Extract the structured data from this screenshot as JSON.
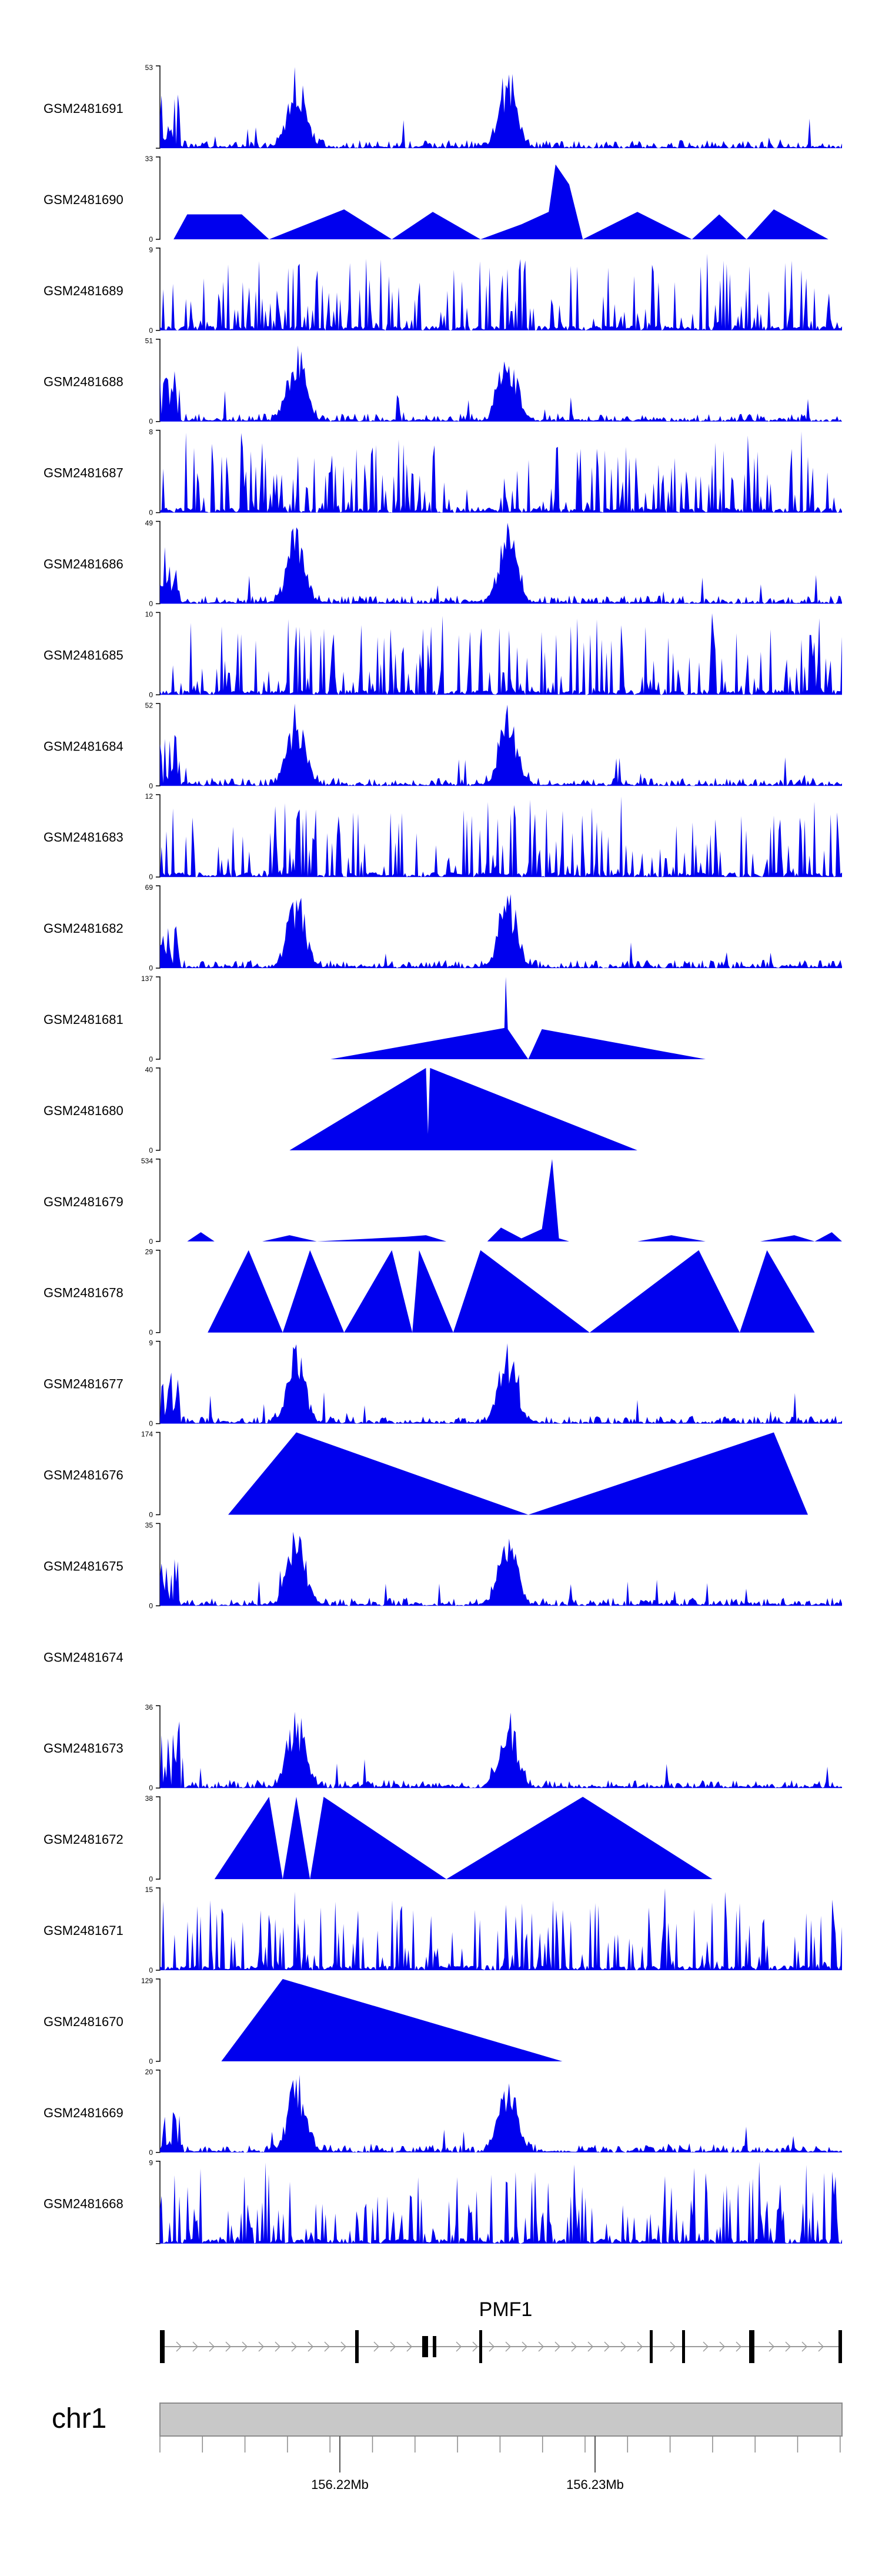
{
  "chart_data": {
    "type": "area",
    "title": "",
    "colors": {
      "signal": "#0000ee",
      "axis": "#000000",
      "gene": "#000000",
      "intron": "#9a9a9a",
      "chrom": "#c8c8c8"
    },
    "gene": {
      "name": "PMF1"
    },
    "chromosome": "chr1",
    "genome_axis": {
      "ticks": [
        "156.22Mb",
        "156.23Mb"
      ]
    },
    "tracks": [
      {
        "name": "GSM2481691",
        "ymin": 0,
        "ymax": 53,
        "ymin_label": "",
        "ymax_label": "53",
        "style": "peaks"
      },
      {
        "name": "GSM2481690",
        "ymin": 0,
        "ymax": 33,
        "ymin_label": "0",
        "ymax_label": "33",
        "style": "sparse",
        "points": [
          [
            0.02,
            0
          ],
          [
            0.04,
            10
          ],
          [
            0.12,
            10
          ],
          [
            0.16,
            0
          ],
          [
            0.27,
            12
          ],
          [
            0.34,
            0
          ],
          [
            0.4,
            11
          ],
          [
            0.47,
            0
          ],
          [
            0.53,
            6
          ],
          [
            0.57,
            11
          ],
          [
            0.58,
            30
          ],
          [
            0.6,
            22
          ],
          [
            0.62,
            0
          ],
          [
            0.7,
            11
          ],
          [
            0.78,
            0
          ],
          [
            0.82,
            10
          ],
          [
            0.86,
            0
          ],
          [
            0.9,
            12
          ],
          [
            0.98,
            0
          ]
        ]
      },
      {
        "name": "GSM2481689",
        "ymin": 0,
        "ymax": 9,
        "ymin_label": "0",
        "ymax_label": "9",
        "style": "dense"
      },
      {
        "name": "GSM2481688",
        "ymin": 0,
        "ymax": 51,
        "ymin_label": "0",
        "ymax_label": "51",
        "style": "peaks"
      },
      {
        "name": "GSM2481687",
        "ymin": 0,
        "ymax": 8,
        "ymin_label": "0",
        "ymax_label": "8",
        "style": "dense"
      },
      {
        "name": "GSM2481686",
        "ymin": 0,
        "ymax": 49,
        "ymin_label": "0",
        "ymax_label": "49",
        "style": "peaks"
      },
      {
        "name": "GSM2481685",
        "ymin": 0,
        "ymax": 10,
        "ymin_label": "0",
        "ymax_label": "10",
        "style": "dense"
      },
      {
        "name": "GSM2481684",
        "ymin": 0,
        "ymax": 52,
        "ymin_label": "0",
        "ymax_label": "52",
        "style": "peaks"
      },
      {
        "name": "GSM2481683",
        "ymin": 0,
        "ymax": 12,
        "ymin_label": "0",
        "ymax_label": "12",
        "style": "dense"
      },
      {
        "name": "GSM2481682",
        "ymin": 0,
        "ymax": 69,
        "ymin_label": "0",
        "ymax_label": "69",
        "style": "peaks"
      },
      {
        "name": "GSM2481681",
        "ymin": 0,
        "ymax": 137,
        "ymin_label": "0",
        "ymax_label": "137",
        "style": "sparse",
        "points": [
          [
            0.25,
            0
          ],
          [
            0.505,
            52
          ],
          [
            0.507,
            137
          ],
          [
            0.51,
            50
          ],
          [
            0.54,
            0
          ],
          [
            0.56,
            50
          ],
          [
            0.8,
            0
          ]
        ]
      },
      {
        "name": "GSM2481680",
        "ymin": 0,
        "ymax": 40,
        "ymin_label": "0",
        "ymax_label": "40",
        "style": "sparse",
        "points": [
          [
            0.19,
            0
          ],
          [
            0.39,
            40
          ],
          [
            0.393,
            8
          ],
          [
            0.396,
            40
          ],
          [
            0.7,
            0
          ]
        ]
      },
      {
        "name": "GSM2481679",
        "ymin": 0,
        "ymax": 534,
        "ymin_label": "0",
        "ymax_label": "534",
        "style": "sparse",
        "points": [
          [
            0.0,
            0
          ],
          [
            0.04,
            0
          ],
          [
            0.06,
            60
          ],
          [
            0.08,
            0
          ],
          [
            0.15,
            0
          ],
          [
            0.19,
            40
          ],
          [
            0.23,
            0
          ],
          [
            0.36,
            30
          ],
          [
            0.39,
            40
          ],
          [
            0.42,
            0
          ],
          [
            0.48,
            0
          ],
          [
            0.5,
            90
          ],
          [
            0.53,
            20
          ],
          [
            0.56,
            80
          ],
          [
            0.575,
            534
          ],
          [
            0.585,
            20
          ],
          [
            0.6,
            0
          ],
          [
            0.7,
            0
          ],
          [
            0.75,
            40
          ],
          [
            0.8,
            0
          ],
          [
            0.88,
            0
          ],
          [
            0.93,
            40
          ],
          [
            0.96,
            0
          ],
          [
            0.985,
            60
          ],
          [
            1.0,
            0
          ]
        ]
      },
      {
        "name": "GSM2481678",
        "ymin": 0,
        "ymax": 29,
        "ymin_label": "0",
        "ymax_label": "29",
        "style": "sparse",
        "points": [
          [
            0.07,
            0
          ],
          [
            0.13,
            29
          ],
          [
            0.18,
            0
          ],
          [
            0.22,
            29
          ],
          [
            0.27,
            0
          ],
          [
            0.34,
            29
          ],
          [
            0.37,
            0
          ],
          [
            0.38,
            29
          ],
          [
            0.43,
            0
          ],
          [
            0.47,
            29
          ],
          [
            0.63,
            0
          ],
          [
            0.79,
            29
          ],
          [
            0.85,
            0
          ],
          [
            0.89,
            29
          ],
          [
            0.96,
            0
          ]
        ]
      },
      {
        "name": "GSM2481677",
        "ymin": 0,
        "ymax": 9,
        "ymin_label": "0",
        "ymax_label": "9",
        "style": "peaks"
      },
      {
        "name": "GSM2481676",
        "ymin": 0,
        "ymax": 174,
        "ymin_label": "0",
        "ymax_label": "174",
        "style": "sparse",
        "points": [
          [
            0.1,
            0
          ],
          [
            0.2,
            174
          ],
          [
            0.54,
            0
          ],
          [
            0.9,
            174
          ],
          [
            0.95,
            0
          ]
        ]
      },
      {
        "name": "GSM2481675",
        "ymin": 0,
        "ymax": 35,
        "ymin_label": "0",
        "ymax_label": "35",
        "style": "peaks"
      },
      {
        "name": "GSM2481674",
        "ymin": 0,
        "ymax": 0,
        "ymin_label": "",
        "ymax_label": "",
        "style": "empty"
      },
      {
        "name": "GSM2481673",
        "ymin": 0,
        "ymax": 36,
        "ymin_label": "0",
        "ymax_label": "36",
        "style": "peaks"
      },
      {
        "name": "GSM2481672",
        "ymin": 0,
        "ymax": 38,
        "ymin_label": "0",
        "ymax_label": "38",
        "style": "sparse",
        "points": [
          [
            0.08,
            0
          ],
          [
            0.16,
            38
          ],
          [
            0.18,
            0
          ],
          [
            0.2,
            38
          ],
          [
            0.22,
            0
          ],
          [
            0.24,
            38
          ],
          [
            0.42,
            0
          ],
          [
            0.62,
            38
          ],
          [
            0.81,
            0
          ]
        ]
      },
      {
        "name": "GSM2481671",
        "ymin": 0,
        "ymax": 15,
        "ymin_label": "0",
        "ymax_label": "15",
        "style": "dense"
      },
      {
        "name": "GSM2481670",
        "ymin": 0,
        "ymax": 129,
        "ymin_label": "0",
        "ymax_label": "129",
        "style": "sparse",
        "points": [
          [
            0.09,
            0
          ],
          [
            0.18,
            129
          ],
          [
            0.59,
            0
          ]
        ]
      },
      {
        "name": "GSM2481669",
        "ymin": 0,
        "ymax": 20,
        "ymin_label": "0",
        "ymax_label": "20",
        "style": "peaks"
      },
      {
        "name": "GSM2481668",
        "ymin": 0,
        "ymax": 9,
        "ymin_label": "",
        "ymax_label": "9",
        "style": "dense"
      }
    ]
  }
}
